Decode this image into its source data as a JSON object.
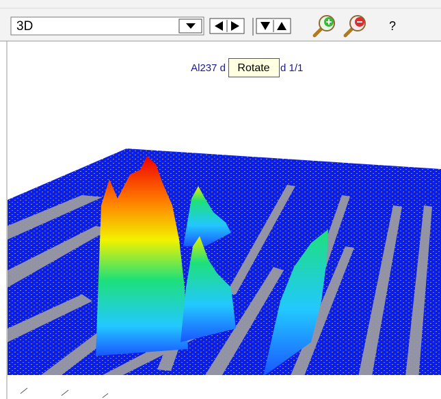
{
  "toolbar": {
    "view_select": "3D",
    "help": "?"
  },
  "plot": {
    "title_left": "Al237  d",
    "title_right": "d 1/1",
    "tooltip": "Rotate"
  }
}
